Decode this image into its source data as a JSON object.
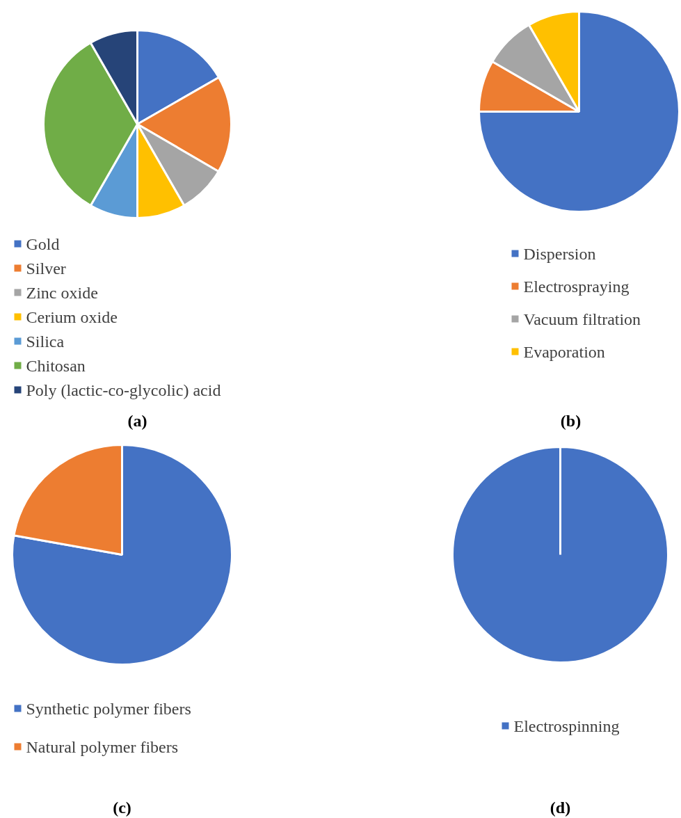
{
  "chart_data": [
    {
      "type": "pie",
      "categories": [
        "Gold",
        "Silver",
        "Zinc oxide",
        "Cerium oxide",
        "Silica",
        "Chitosan",
        "Poly (lactic-co-glycolic) acid"
      ],
      "values": [
        16.7,
        16.7,
        8.3,
        8.3,
        8.3,
        33.4,
        8.3
      ],
      "colors": [
        "#4472c4",
        "#ed7d31",
        "#a5a5a5",
        "#ffc000",
        "#5b9bd5",
        "#70ad47",
        "#264478"
      ],
      "legend": "bottom",
      "annotations": [
        "(a)"
      ]
    },
    {
      "type": "pie",
      "categories": [
        "Dispersion",
        "Electrospraying",
        "Vacuum filtration",
        "Evaporation"
      ],
      "values": [
        75,
        8.33,
        8.33,
        8.34
      ],
      "colors": [
        "#4472c4",
        "#ed7d31",
        "#a5a5a5",
        "#ffc000"
      ],
      "legend": "bottom",
      "annotations": [
        "(b)"
      ]
    },
    {
      "type": "pie",
      "categories": [
        "Synthetic polymer fibers",
        "Natural polymer fibers"
      ],
      "values": [
        77.8,
        22.2
      ],
      "colors": [
        "#4472c4",
        "#ed7d31"
      ],
      "legend": "bottom",
      "annotations": [
        "(c)"
      ]
    },
    {
      "type": "pie",
      "categories": [
        "Electrospinning"
      ],
      "values": [
        100
      ],
      "colors": [
        "#4472c4"
      ],
      "legend": "bottom",
      "annotations": [
        "(d)"
      ]
    }
  ]
}
